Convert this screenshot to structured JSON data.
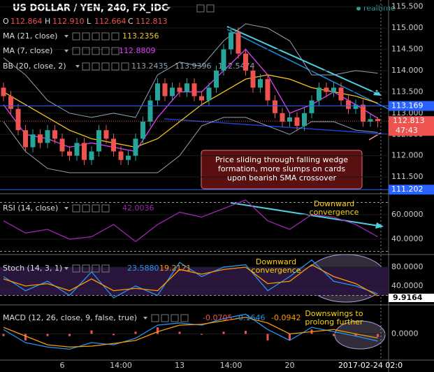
{
  "chart_data": [
    {
      "type": "candlestick",
      "title": "US DOLLAR / YEN, 240, FX_IDC",
      "status": "realtime",
      "header_labels": [
        "O",
        "H",
        "L",
        "C"
      ],
      "header_values": [
        "112.864",
        "112.910",
        "112.664",
        "112.813"
      ],
      "categories": [
        null,
        null,
        null,
        null,
        null,
        null,
        null,
        null,
        "6",
        null,
        null,
        null,
        null,
        null,
        null,
        null,
        "14:00",
        null,
        null,
        null,
        null,
        null,
        null,
        null,
        "13",
        null,
        null,
        null,
        null,
        null,
        null,
        "14:00",
        null,
        null,
        null,
        null,
        null,
        null,
        null,
        "20",
        null,
        null,
        null,
        null,
        null,
        null,
        null,
        null,
        null,
        null,
        "2017-02-24 02:0",
        null
      ],
      "ohlc": {
        "open": [
          113.6,
          113.4,
          113.1,
          112.6,
          112.2,
          112.5,
          112.3,
          112.6,
          112.4,
          112.1,
          112.0,
          112.3,
          111.9,
          112.1,
          112.6,
          112.4,
          112.1,
          111.9,
          112.0,
          112.4,
          112.8,
          113.3,
          113.7,
          113.4,
          113.6,
          113.5,
          113.7,
          113.4,
          113.3,
          113.6,
          114.0,
          114.5,
          114.9,
          114.4,
          114.0,
          113.6,
          113.8,
          113.3,
          113.0,
          112.8,
          112.9,
          112.7,
          113.0,
          113.3,
          113.6,
          113.5,
          113.6,
          113.3,
          113.1,
          113.2,
          112.8,
          112.864
        ],
        "high": [
          113.72,
          113.52,
          113.22,
          112.72,
          112.62,
          112.62,
          112.72,
          112.72,
          112.52,
          112.22,
          112.42,
          112.42,
          112.22,
          112.72,
          112.72,
          112.52,
          112.22,
          112.12,
          112.52,
          112.92,
          113.42,
          113.82,
          113.82,
          113.72,
          113.72,
          113.82,
          113.82,
          113.52,
          113.72,
          114.12,
          114.62,
          115.02,
          115.02,
          114.52,
          114.12,
          113.92,
          113.92,
          113.42,
          113.12,
          113.02,
          113.02,
          113.12,
          113.42,
          113.72,
          113.72,
          113.72,
          113.72,
          113.42,
          113.32,
          113.32,
          112.98,
          112.91
        ],
        "low": [
          113.28,
          112.98,
          112.48,
          112.08,
          112.08,
          112.18,
          112.18,
          112.28,
          111.98,
          111.88,
          111.88,
          111.78,
          111.78,
          111.98,
          112.28,
          111.98,
          111.78,
          111.78,
          111.88,
          112.28,
          112.68,
          113.18,
          113.28,
          113.28,
          113.38,
          113.38,
          113.28,
          113.18,
          113.18,
          113.48,
          113.88,
          114.38,
          114.28,
          113.88,
          113.48,
          113.48,
          113.18,
          112.88,
          112.68,
          112.68,
          112.58,
          112.58,
          112.88,
          113.18,
          113.38,
          113.38,
          113.18,
          112.98,
          112.98,
          112.68,
          112.68,
          112.664
        ],
        "close": [
          113.4,
          113.1,
          112.6,
          112.2,
          112.5,
          112.3,
          112.6,
          112.4,
          112.1,
          112.0,
          112.3,
          111.9,
          112.1,
          112.6,
          112.4,
          112.1,
          111.9,
          112.0,
          112.4,
          112.8,
          113.3,
          113.7,
          113.4,
          113.6,
          113.5,
          113.7,
          113.4,
          113.3,
          113.6,
          114.0,
          114.5,
          114.9,
          114.4,
          114.0,
          113.6,
          113.8,
          113.3,
          113.0,
          112.8,
          112.9,
          112.7,
          113.0,
          113.3,
          113.6,
          113.5,
          113.6,
          113.3,
          113.1,
          113.2,
          112.8,
          112.86,
          112.813
        ]
      },
      "up_color": "#26a69a",
      "down_color": "#ef5350",
      "ylim": [
        111.14,
        115.66
      ],
      "yticks": [
        {
          "value": 115.5,
          "label": "115.500"
        },
        {
          "value": 115,
          "label": "115.000"
        },
        {
          "value": 114.5,
          "label": "114.500"
        },
        {
          "value": 114,
          "label": "114.000"
        },
        {
          "value": 113.5,
          "label": "113.500"
        },
        {
          "value": 113,
          "label": "113.000"
        },
        {
          "value": 112.5,
          "label": "112.500"
        },
        {
          "value": 112,
          "label": "112.000"
        },
        {
          "value": 111.5,
          "label": "111.500"
        }
      ],
      "price_lines": [
        {
          "value": 113.169,
          "label": "113.169"
        },
        {
          "value": 111.202,
          "label": "111.202"
        }
      ],
      "countdown": "47:43",
      "indicators": [
        {
          "name": "MA (21, close)",
          "color": "#f5c518",
          "readout": [
            "113.2356"
          ],
          "x": [
            0,
            3,
            6,
            9,
            12,
            15,
            18,
            21,
            24,
            27,
            30,
            33,
            36,
            39,
            42,
            45,
            48,
            51
          ],
          "values": [
            113.5,
            113.2,
            112.9,
            112.6,
            112.4,
            112.3,
            112.2,
            112.4,
            112.8,
            113.2,
            113.5,
            113.8,
            113.9,
            113.8,
            113.6,
            113.5,
            113.4,
            113.2356
          ]
        },
        {
          "name": "MA (7, close)",
          "color": "#e040fb",
          "readout": [
            "112.8809"
          ],
          "x": [
            0,
            3,
            6,
            9,
            12,
            15,
            18,
            21,
            24,
            27,
            30,
            33,
            36,
            39,
            42,
            45,
            48,
            51
          ],
          "values": [
            113.2,
            112.5,
            112.4,
            112.2,
            112.3,
            112.2,
            112.1,
            112.9,
            113.5,
            113.5,
            114.0,
            114.5,
            113.9,
            113.0,
            113.2,
            113.5,
            113.2,
            112.8809
          ]
        },
        {
          "name": "BB (20, close, 2)",
          "color": "#8fa3b5",
          "readout": [
            "113.2435",
            "113.9396",
            "112.5474"
          ],
          "x": [
            0,
            3,
            6,
            9,
            12,
            15,
            18,
            21,
            24,
            27,
            30,
            33,
            36,
            39,
            42,
            45,
            48,
            51
          ],
          "upper": [
            114.3,
            113.9,
            113.3,
            113.0,
            112.9,
            113.0,
            112.9,
            113.9,
            114.2,
            114.1,
            114.7,
            115.1,
            115.0,
            114.7,
            113.9,
            113.9,
            114.0,
            113.9396
          ],
          "lower": [
            112.8,
            112.1,
            111.7,
            111.6,
            111.6,
            111.6,
            111.6,
            111.6,
            112.0,
            112.7,
            112.9,
            112.9,
            112.7,
            112.5,
            112.8,
            112.8,
            112.6,
            112.5474
          ]
        }
      ],
      "annotation": [
        "Price sliding through falling wedge",
        "formation, more slumps on cards",
        "upon bearish SMA crossover"
      ]
    },
    {
      "type": "line",
      "title": "RSI (14, close)",
      "readout": [
        "42.0036"
      ],
      "x": [
        0,
        3,
        6,
        9,
        12,
        15,
        18,
        21,
        24,
        27,
        30,
        33,
        36,
        39,
        42,
        45,
        48,
        51
      ],
      "series": [
        {
          "color": "#9c27b0",
          "values": [
            55,
            45,
            48,
            40,
            42,
            52,
            38,
            52,
            62,
            58,
            65,
            72,
            55,
            48,
            60,
            58,
            52,
            42.0036
          ]
        }
      ],
      "ylim": [
        28.6,
        75.4
      ],
      "yticks": [
        {
          "value": 60,
          "label": "60.0000"
        },
        {
          "value": 40,
          "label": "40.0000"
        }
      ],
      "bands": [
        70,
        30
      ],
      "annotation": [
        "Downward",
        "convergence"
      ]
    },
    {
      "type": "line",
      "title": "Stoch (14, 3, 1)",
      "readout": [
        "23.5880",
        "19.2121"
      ],
      "x": [
        0,
        3,
        6,
        9,
        12,
        15,
        18,
        21,
        24,
        27,
        30,
        33,
        36,
        39,
        42,
        45,
        48,
        51
      ],
      "series": [
        {
          "color": "#2196f3",
          "values": [
            60,
            30,
            50,
            20,
            70,
            15,
            40,
            20,
            90,
            60,
            80,
            85,
            30,
            60,
            95,
            50,
            40,
            23.588
          ]
        },
        {
          "color": "#ff9800",
          "values": [
            55,
            40,
            45,
            30,
            55,
            30,
            35,
            30,
            75,
            65,
            75,
            80,
            45,
            50,
            85,
            60,
            45,
            19.2121
          ]
        }
      ],
      "ylim": [
        5.9,
        103.7
      ],
      "yticks": [
        {
          "value": 80,
          "label": "80.0000"
        },
        {
          "value": 40,
          "label": "40.0000"
        }
      ],
      "bands": [
        80,
        20
      ],
      "flag": {
        "value": 9.9164,
        "label": "9.9164"
      },
      "annotation": [
        "Downward",
        "convergence"
      ]
    },
    {
      "type": "line",
      "title": "MACD (12, 26, close, 9, false, true)",
      "readout": [
        "-0.0705",
        "-0.1646",
        "-0.0942"
      ],
      "x": [
        0,
        3,
        6,
        9,
        12,
        15,
        18,
        21,
        24,
        27,
        30,
        33,
        36,
        39,
        42,
        45,
        48,
        51
      ],
      "series": [
        {
          "kind": "bar",
          "color": "#ef5350",
          "values": [
            -0.05,
            -0.15,
            -0.05,
            -0.05,
            0.08,
            -0.03,
            0.05,
            0.15,
            0.05,
            -0.02,
            0.05,
            0.07,
            -0.15,
            -0.15,
            0.1,
            -0.05,
            -0.05,
            -0.0705
          ]
        },
        {
          "color": "#2196f3",
          "values": [
            0.1,
            -0.2,
            -0.3,
            -0.35,
            -0.2,
            -0.25,
            -0.1,
            0.2,
            0.25,
            0.2,
            0.35,
            0.45,
            0.1,
            -0.15,
            0.15,
            0.05,
            -0.05,
            -0.1646
          ]
        },
        {
          "color": "#ff9800",
          "values": [
            0.15,
            -0.05,
            -0.25,
            -0.3,
            -0.28,
            -0.22,
            -0.15,
            0.05,
            0.2,
            0.22,
            0.3,
            0.38,
            0.25,
            0.0,
            0.05,
            0.1,
            0.0,
            -0.0942
          ]
        }
      ],
      "ylim": [
        -0.6,
        0.6
      ],
      "yticks": [
        {
          "value": 0,
          "label": "0.0000"
        }
      ],
      "annotation": [
        "Downswings to",
        "prolong further"
      ]
    }
  ]
}
